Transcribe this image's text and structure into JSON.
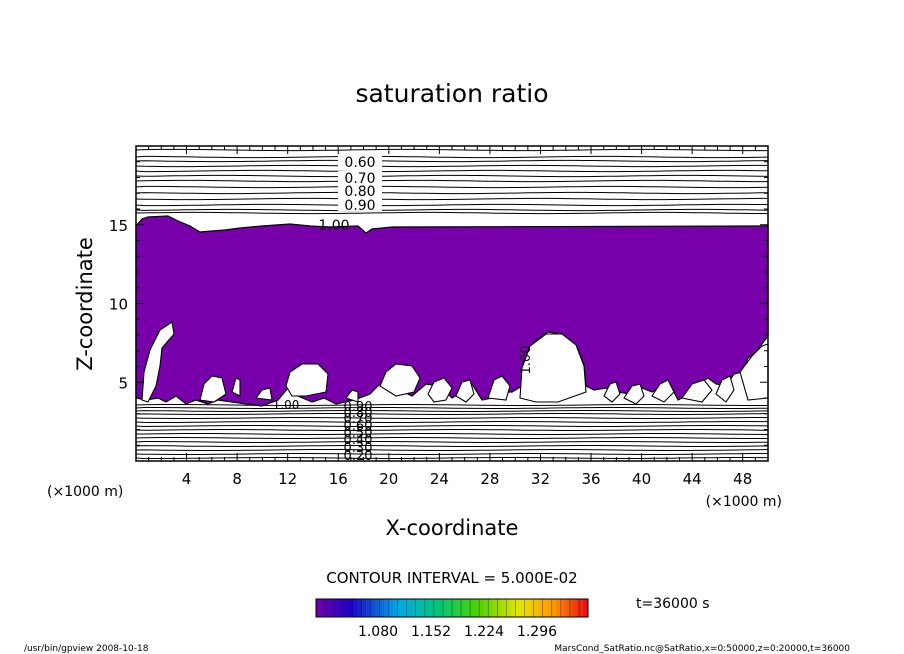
{
  "chart_data": {
    "type": "heatmap",
    "title": "saturation ratio",
    "xlabel": "X-coordinate",
    "ylabel": "Z-coordinate",
    "x_unit_left": "(×1000 m)",
    "x_unit_right": "(×1000 m)",
    "xlim": [
      0,
      50
    ],
    "ylim": [
      0,
      20
    ],
    "x_ticks": [
      4,
      8,
      12,
      16,
      20,
      24,
      28,
      32,
      36,
      40,
      44,
      48
    ],
    "x_tick_labels": [
      "4",
      "8",
      "12",
      "16",
      "20",
      "24",
      "28",
      "32",
      "36",
      "40",
      "44",
      "48"
    ],
    "y_ticks": [
      5,
      10,
      15
    ],
    "y_tick_labels": [
      "5",
      "10",
      "15"
    ],
    "upper_contour_levels": [
      0.6,
      0.7,
      0.8,
      0.9
    ],
    "upper_contour_labels": [
      "0.60",
      "0.70",
      "0.80",
      "0.90"
    ],
    "lower_contour_labels": [
      "0.20",
      "0.30",
      "0.40",
      "0.50",
      "0.60",
      "0.70",
      "0.80",
      "0.90"
    ],
    "contour_labels_one": [
      "1.00",
      "1.00",
      "1.00"
    ],
    "contour_interval": "CONTOUR INTERVAL = 5.000E-02",
    "colorbar_labels": [
      "1.080",
      "1.152",
      "1.224",
      "1.296"
    ],
    "time": "t=36000 s",
    "fill_color": "#7700aa",
    "footer_left": "/usr/bin/gpview   2008-10-18",
    "footer_right": "MarsCond_SatRatio.nc@SatRatio,x=0:50000,z=0:20000,t=36000"
  }
}
